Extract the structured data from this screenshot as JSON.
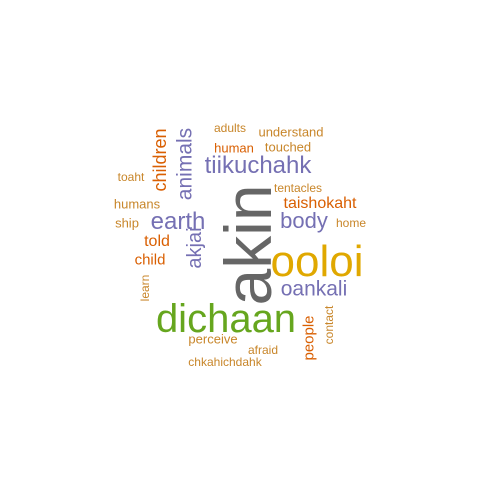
{
  "colors": {
    "gray": "#666666",
    "gold": "#e0a800",
    "green": "#66a61e",
    "purple": "#7570b3",
    "orange": "#d95f02",
    "tan": "#c8862a"
  },
  "words": [
    {
      "key": "akin",
      "text": "akin"
    },
    {
      "key": "ooloi",
      "text": "ooloi"
    },
    {
      "key": "dichaan",
      "text": "dichaan"
    },
    {
      "key": "tiikuchahk",
      "text": "tiikuchahk"
    },
    {
      "key": "earth",
      "text": "earth"
    },
    {
      "key": "body",
      "text": "body"
    },
    {
      "key": "oankali",
      "text": "oankali"
    },
    {
      "key": "animals",
      "text": "animals"
    },
    {
      "key": "akjai",
      "text": "akjai"
    },
    {
      "key": "children",
      "text": "children"
    },
    {
      "key": "taishokaht",
      "text": "taishokaht"
    },
    {
      "key": "people",
      "text": "people"
    },
    {
      "key": "told",
      "text": "told"
    },
    {
      "key": "child",
      "text": "child"
    },
    {
      "key": "human",
      "text": "human"
    },
    {
      "key": "adults",
      "text": "adults"
    },
    {
      "key": "understand",
      "text": "understand"
    },
    {
      "key": "touched",
      "text": "touched"
    },
    {
      "key": "tentacles",
      "text": "tentacles"
    },
    {
      "key": "toaht",
      "text": "toaht"
    },
    {
      "key": "humans",
      "text": "humans"
    },
    {
      "key": "ship",
      "text": "ship"
    },
    {
      "key": "home",
      "text": "home"
    },
    {
      "key": "learn",
      "text": "learn"
    },
    {
      "key": "contact",
      "text": "contact"
    },
    {
      "key": "perceive",
      "text": "perceive"
    },
    {
      "key": "afraid",
      "text": "afraid"
    },
    {
      "key": "chkahichdahk",
      "text": "chkahichdahk"
    }
  ]
}
